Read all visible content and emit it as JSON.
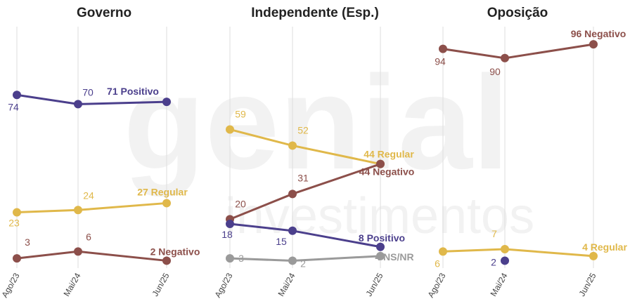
{
  "chart_data": [
    {
      "type": "line",
      "title": "Governo",
      "categories": [
        "Ago/23",
        "Mai/24",
        "Jun/25"
      ],
      "series": [
        {
          "name": "Positivo",
          "values": [
            74,
            70,
            71
          ],
          "color": "#4b3f8c"
        },
        {
          "name": "Regular",
          "values": [
            23,
            24,
            27
          ],
          "color": "#e0b84a"
        },
        {
          "name": "Negativo",
          "values": [
            3,
            6,
            2
          ],
          "color": "#8c4f4a"
        }
      ],
      "end_labels": [
        "71 Positivo",
        "27 Regular",
        "2 Negativo"
      ],
      "grid": "vertical"
    },
    {
      "type": "line",
      "title": "Independente (Esp.)",
      "categories": [
        "Ago/23",
        "Mai/24",
        "Jun/25"
      ],
      "series": [
        {
          "name": "Regular",
          "values": [
            59,
            52,
            44
          ],
          "color": "#e0b84a"
        },
        {
          "name": "Negativo",
          "values": [
            20,
            31,
            44
          ],
          "color": "#8c4f4a"
        },
        {
          "name": "Positivo",
          "values": [
            18,
            15,
            8
          ],
          "color": "#4b3f8c"
        },
        {
          "name": "NS/NR",
          "values": [
            3,
            2,
            4
          ],
          "color": "#9a9a9a"
        }
      ],
      "end_labels": [
        "44 Regular",
        "44 Negativo",
        "8 Positivo",
        "4 NS/NR"
      ],
      "grid": "vertical"
    },
    {
      "type": "line",
      "title": "Oposição",
      "categories": [
        "Ago/23",
        "Mai/24",
        "Jun/25"
      ],
      "series": [
        {
          "name": "Negativo",
          "values": [
            94,
            90,
            96
          ],
          "color": "#8c4f4a"
        },
        {
          "name": "Regular",
          "values": [
            6,
            7,
            4
          ],
          "color": "#e0b84a"
        },
        {
          "name": "Positivo",
          "values": [
            null,
            2,
            null
          ],
          "color": "#4b3f8c"
        }
      ],
      "end_labels": [
        "96 Negativo",
        "4 Regular"
      ],
      "grid": "vertical"
    }
  ],
  "watermark": {
    "line1": "genial",
    "line2": "investimentos"
  }
}
